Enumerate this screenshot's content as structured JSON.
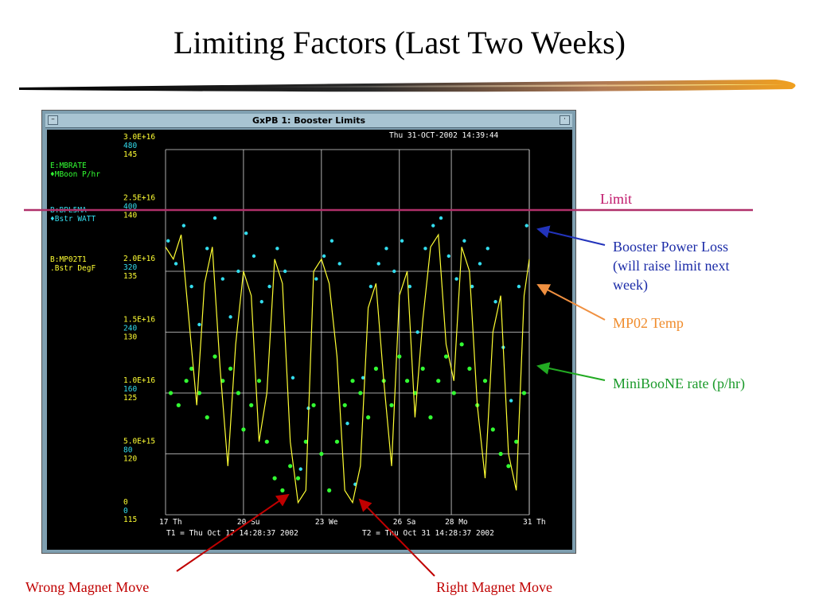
{
  "slide": {
    "title": "Limiting Factors (Last Two Weeks)"
  },
  "window": {
    "title": "GxPB 1: Booster Limits",
    "menu_button": "–",
    "min_button": "·"
  },
  "plot": {
    "timestamp": "Thu 31-OCT-2002 14:39:44",
    "legend": [
      {
        "device": "E:MBRATE",
        "desc": "♦MBoon  P/hr",
        "color": "#33ff33"
      },
      {
        "device": "B:BPL5MA",
        "desc": "♦Bstr   WATT",
        "color": "#33ddee"
      },
      {
        "device": "B:MP02T1",
        "desc": ".Bstr   DegF",
        "color": "#ffff33"
      }
    ],
    "y_ticks": [
      {
        "rate": "3.0E+16",
        "watt": "480",
        "degf": "145"
      },
      {
        "rate": "2.5E+16",
        "watt": "400",
        "degf": "140"
      },
      {
        "rate": "2.0E+16",
        "watt": "320",
        "degf": "135"
      },
      {
        "rate": "1.5E+16",
        "watt": "240",
        "degf": "130"
      },
      {
        "rate": "1.0E+16",
        "watt": "160",
        "degf": "125"
      },
      {
        "rate": "5.0E+15",
        "watt": "80",
        "degf": "120"
      },
      {
        "rate": "0",
        "watt": "0",
        "degf": "115"
      }
    ],
    "x_ticks": [
      "17 Th",
      "20 Su",
      "23 We",
      "26 Sa",
      "28 Mo",
      "31 Th"
    ],
    "t1": "T1 = Thu Oct 17 14:28:37 2002",
    "t2": "T2 = Thu Oct 31 14:28:37 2002"
  },
  "annotations": {
    "limit": "Limit",
    "booster_power_loss": [
      "Booster Power Loss",
      "(will raise limit next",
      "week)"
    ],
    "mp02_temp": "MP02 Temp",
    "miniboone_rate": "MiniBooNE rate (p/hr)",
    "wrong_magnet_move": "Wrong Magnet Move",
    "right_magnet_move": "Right Magnet Move"
  },
  "colors": {
    "limit_line": "#b0306a",
    "power_arrow": "#2233bb",
    "temp_arrow": "#f09040",
    "mb_arrow": "#22aa22",
    "magnet_arrow": "#c00000"
  },
  "chart_data": {
    "type": "scatter",
    "x_range_days": [
      0,
      14
    ],
    "x_tick_days": [
      0,
      3,
      6,
      9,
      11,
      14
    ],
    "y_axes": [
      {
        "series": "E:MBRATE",
        "unit": "P/hr",
        "range": [
          0,
          3e+16
        ]
      },
      {
        "series": "B:BPL5MA",
        "unit": "WATT",
        "range": [
          0,
          480
        ]
      },
      {
        "series": "B:MP02T1",
        "unit": "DegF",
        "range": [
          115,
          145
        ]
      }
    ],
    "limit_level_watt": 400,
    "grid": true,
    "series": [
      {
        "name": "E:MBRATE",
        "style": "points",
        "x": [
          0.2,
          0.5,
          0.8,
          1.0,
          1.3,
          1.6,
          1.9,
          2.2,
          2.5,
          2.8,
          3.0,
          3.3,
          3.6,
          3.9,
          4.2,
          4.5,
          4.8,
          5.1,
          5.4,
          5.7,
          6.0,
          6.3,
          6.6,
          6.9,
          7.2,
          7.5,
          7.8,
          8.1,
          8.4,
          8.7,
          9.0,
          9.3,
          9.6,
          9.9,
          10.2,
          10.5,
          10.8,
          11.1,
          11.4,
          11.7,
          12.0,
          12.3,
          12.6,
          12.9,
          13.2,
          13.5,
          13.8
        ],
        "values": [
          1e+16,
          9000000000000000.0,
          1.1e+16,
          1.2e+16,
          1e+16,
          8000000000000000.0,
          1.3e+16,
          1.1e+16,
          1.2e+16,
          1e+16,
          7000000000000000.0,
          9000000000000000.0,
          1.1e+16,
          6000000000000000.0,
          3000000000000000.0,
          2000000000000000.0,
          4000000000000000.0,
          3000000000000000.0,
          6000000000000000.0,
          9000000000000000.0,
          5000000000000000.0,
          2000000000000000.0,
          6000000000000000.0,
          9000000000000000.0,
          1.1e+16,
          1e+16,
          8000000000000000.0,
          1.2e+16,
          1.1e+16,
          9000000000000000.0,
          1.3e+16,
          1.1e+16,
          1e+16,
          1.2e+16,
          8000000000000000.0,
          1.1e+16,
          1.3e+16,
          1e+16,
          1.4e+16,
          1.2e+16,
          9000000000000000.0,
          1.1e+16,
          7000000000000000.0,
          5000000000000000.0,
          4000000000000000.0,
          6000000000000000.0,
          1e+16
        ]
      },
      {
        "name": "B:BPL5MA",
        "style": "points",
        "x": [
          0.1,
          0.4,
          0.7,
          1.0,
          1.3,
          1.6,
          1.9,
          2.2,
          2.5,
          2.8,
          3.1,
          3.4,
          3.7,
          4.0,
          4.3,
          4.6,
          4.9,
          5.2,
          5.5,
          5.8,
          6.1,
          6.4,
          6.7,
          7.0,
          7.3,
          7.6,
          7.9,
          8.2,
          8.5,
          8.8,
          9.1,
          9.4,
          9.7,
          10.0,
          10.3,
          10.6,
          10.9,
          11.2,
          11.5,
          11.8,
          12.1,
          12.4,
          12.7,
          13.0,
          13.3,
          13.6,
          13.9
        ],
        "values": [
          360,
          330,
          380,
          300,
          250,
          350,
          390,
          310,
          260,
          320,
          370,
          340,
          280,
          300,
          350,
          320,
          180,
          60,
          140,
          310,
          340,
          360,
          330,
          120,
          40,
          180,
          300,
          330,
          350,
          320,
          360,
          300,
          240,
          350,
          380,
          390,
          340,
          310,
          360,
          300,
          330,
          350,
          280,
          220,
          150,
          300,
          380
        ]
      },
      {
        "name": "B:MP02T1",
        "style": "line",
        "x": [
          0,
          0.3,
          0.6,
          0.9,
          1.2,
          1.5,
          1.8,
          2.1,
          2.4,
          2.7,
          3.0,
          3.3,
          3.6,
          3.9,
          4.2,
          4.5,
          4.8,
          5.1,
          5.4,
          5.7,
          6.0,
          6.3,
          6.6,
          6.9,
          7.2,
          7.5,
          7.8,
          8.1,
          8.4,
          8.7,
          9.0,
          9.3,
          9.6,
          9.9,
          10.2,
          10.5,
          10.8,
          11.1,
          11.4,
          11.7,
          12.0,
          12.3,
          12.6,
          12.9,
          13.2,
          13.5,
          13.8,
          14.0
        ],
        "values": [
          137,
          136,
          138,
          131,
          124,
          134,
          137,
          127,
          119,
          129,
          135,
          133,
          121,
          125,
          136,
          134,
          121,
          116,
          117,
          135,
          136,
          134,
          128,
          117,
          116,
          119,
          132,
          134,
          126,
          119,
          133,
          135,
          123,
          131,
          137,
          138,
          129,
          126,
          137,
          135,
          124,
          118,
          130,
          133,
          120,
          117,
          133,
          136
        ]
      }
    ]
  }
}
